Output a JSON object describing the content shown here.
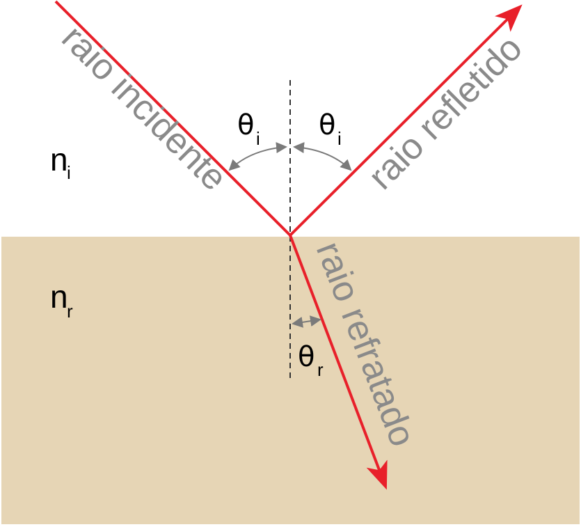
{
  "colors": {
    "ray": "#e8202a",
    "medium": "#e6d5b5",
    "label": "#8a8a8a",
    "angle_marker": "#7a7a7a",
    "normal": "#333333"
  },
  "rays": {
    "incident": "raio incidente",
    "reflected": "raio refletido",
    "refracted": "raio refratado"
  },
  "media": {
    "incident": {
      "symbol": "n",
      "subscript": "i"
    },
    "refracted": {
      "symbol": "n",
      "subscript": "r"
    }
  },
  "angles": {
    "incidence": {
      "symbol": "θ",
      "subscript": "i"
    },
    "reflection": {
      "symbol": "θ",
      "subscript": "i"
    },
    "refraction": {
      "symbol": "θ",
      "subscript": "r"
    }
  }
}
